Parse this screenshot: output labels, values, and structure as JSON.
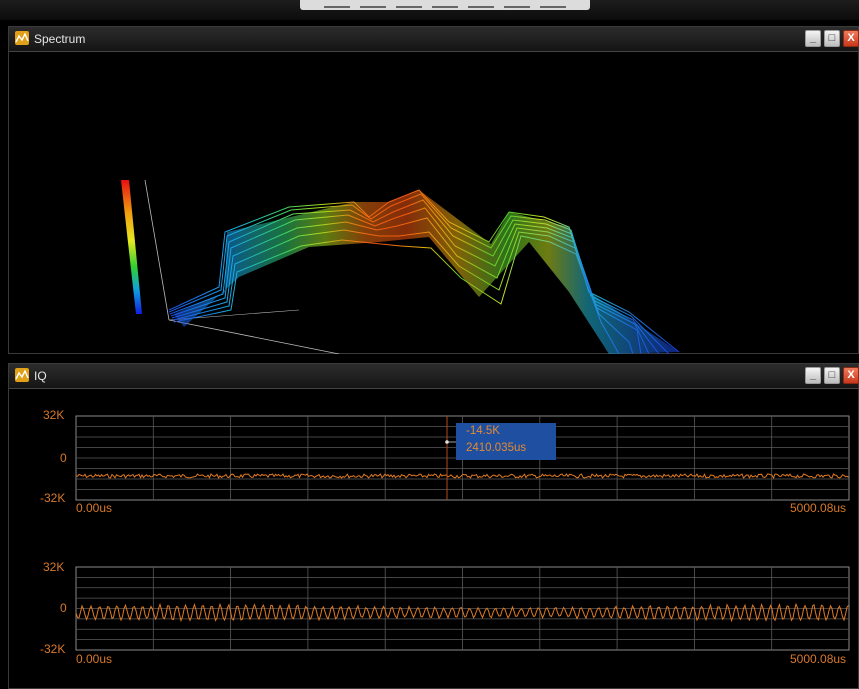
{
  "spectrum_window": {
    "title": "Spectrum",
    "buttons": {
      "minimize": "_",
      "maximize": "□",
      "close": "X"
    }
  },
  "iq_window": {
    "title": "IQ",
    "buttons": {
      "minimize": "_",
      "maximize": "□",
      "close": "X"
    }
  },
  "iq_plots": [
    {
      "y_top": "32K",
      "y_mid": "0",
      "y_bottom": "-32K",
      "x_start": "0.00us",
      "x_end": "5000.08us"
    },
    {
      "y_top": "32K",
      "y_mid": "0",
      "y_bottom": "-32K",
      "x_start": "0.00us",
      "x_end": "5000.08us"
    }
  ],
  "cursor_readout": {
    "value": "-14.5K",
    "time": "2410.035us"
  },
  "colors": {
    "trace": "#e07a22",
    "grid": "#5a5a5a",
    "cursor_box": "#1f4fa0"
  }
}
